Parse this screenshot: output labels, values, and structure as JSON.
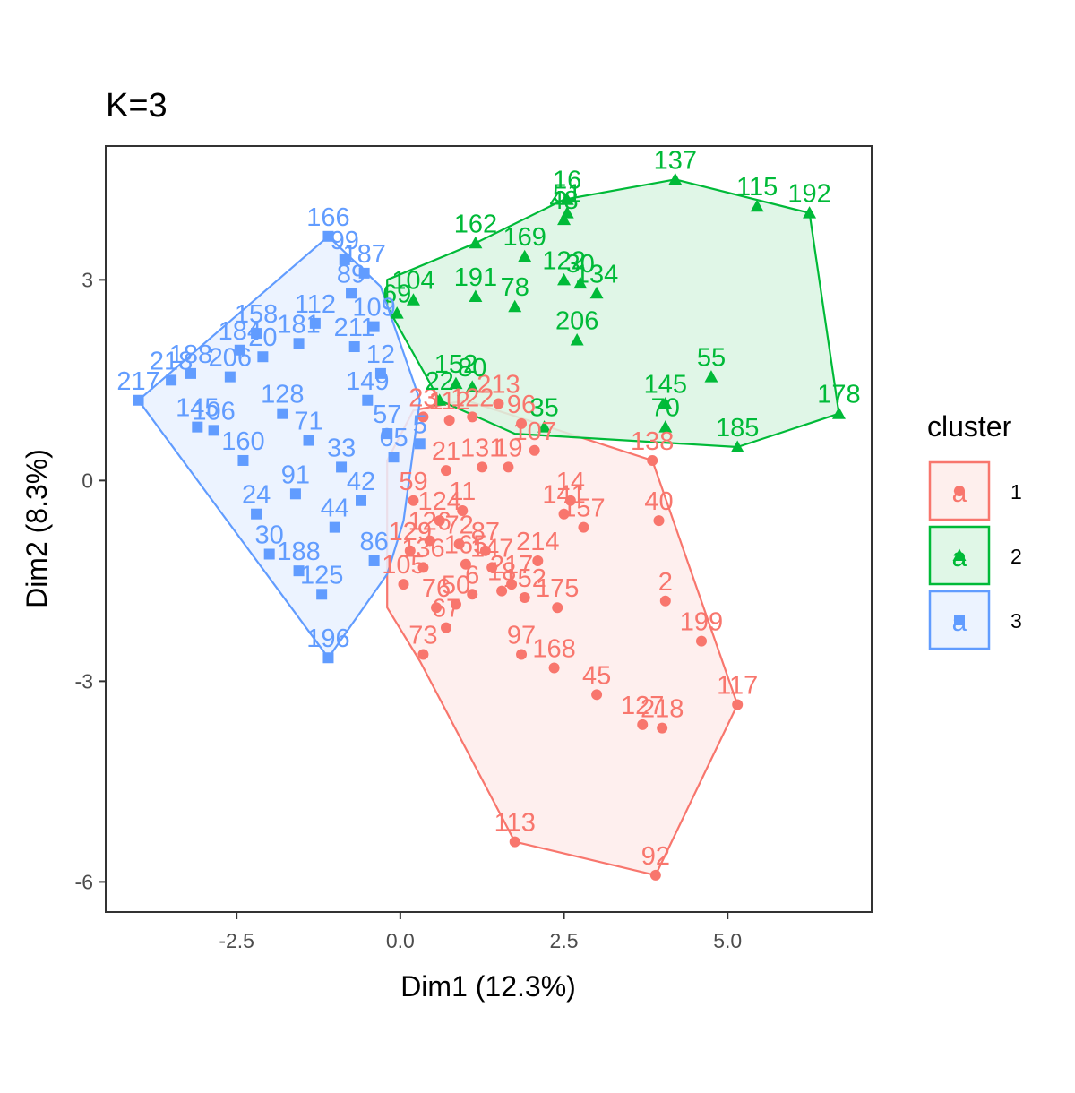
{
  "chart_data": {
    "type": "scatter",
    "title": "K=3",
    "xlabel": "Dim1 (12.3%)",
    "ylabel": "Dim2 (8.3%)",
    "xlim": [
      -4.5,
      7.2
    ],
    "ylim": [
      -6.45,
      5.0
    ],
    "x_ticks": [
      -2.5,
      0.0,
      2.5,
      5.0
    ],
    "x_tick_labels": [
      "-2.5",
      "0.0",
      "2.5",
      "5.0"
    ],
    "y_ticks": [
      -6,
      -3,
      0,
      3
    ],
    "y_tick_labels": [
      "-6",
      "-3",
      "0",
      "3"
    ],
    "grid": false,
    "legend": {
      "title": "cluster",
      "position": "right",
      "key_glyph": "a",
      "items": [
        "1",
        "2",
        "3"
      ]
    },
    "series": [
      {
        "name": "1",
        "color": "#F8766D",
        "marker": "circle",
        "hull": [
          [
            1.75,
            -5.4
          ],
          [
            3.9,
            -5.9
          ],
          [
            5.15,
            -3.35
          ],
          [
            3.85,
            0.3
          ],
          [
            1.0,
            1.2
          ],
          [
            0.2,
            1.05
          ],
          [
            -0.2,
            0.3
          ],
          [
            -0.2,
            -0.9
          ],
          [
            -0.2,
            -1.9
          ],
          [
            0.3,
            -2.7
          ]
        ],
        "points": [
          {
            "x": 1.75,
            "y": -5.4,
            "label": "113"
          },
          {
            "x": 3.9,
            "y": -5.9,
            "label": "92"
          },
          {
            "x": 5.15,
            "y": -3.35,
            "label": "117"
          },
          {
            "x": 3.7,
            "y": -3.65,
            "label": "127"
          },
          {
            "x": 4.0,
            "y": -3.7,
            "label": "218"
          },
          {
            "x": 3.0,
            "y": -3.2,
            "label": "45"
          },
          {
            "x": 2.35,
            "y": -2.8,
            "label": "168"
          },
          {
            "x": 1.85,
            "y": -2.6,
            "label": "97"
          },
          {
            "x": 4.6,
            "y": -2.4,
            "label": "199"
          },
          {
            "x": 4.05,
            "y": -1.8,
            "label": "2"
          },
          {
            "x": 2.4,
            "y": -1.9,
            "label": "175"
          },
          {
            "x": 3.95,
            "y": -0.6,
            "label": "40"
          },
          {
            "x": 2.8,
            "y": -0.7,
            "label": "157"
          },
          {
            "x": 2.5,
            "y": -0.5,
            "label": "141"
          },
          {
            "x": 2.6,
            "y": -0.3,
            "label": "14"
          },
          {
            "x": 2.1,
            "y": -1.2,
            "label": "214"
          },
          {
            "x": 1.7,
            "y": -1.55,
            "label": "217"
          },
          {
            "x": 1.9,
            "y": -1.75,
            "label": "152"
          },
          {
            "x": 1.55,
            "y": -1.65,
            "label": "18"
          },
          {
            "x": 1.4,
            "y": -1.3,
            "label": "147"
          },
          {
            "x": 1.0,
            "y": -1.25,
            "label": "165"
          },
          {
            "x": 1.1,
            "y": -1.7,
            "label": "6"
          },
          {
            "x": 0.85,
            "y": -1.85,
            "label": "50"
          },
          {
            "x": 0.7,
            "y": -2.2,
            "label": "67"
          },
          {
            "x": 0.35,
            "y": -2.6,
            "label": "73"
          },
          {
            "x": 0.05,
            "y": -1.55,
            "label": "105"
          },
          {
            "x": 0.35,
            "y": -1.3,
            "label": "136"
          },
          {
            "x": 0.45,
            "y": -0.9,
            "label": "126"
          },
          {
            "x": 0.6,
            "y": -0.6,
            "label": "124"
          },
          {
            "x": 0.95,
            "y": -0.45,
            "label": "11"
          },
          {
            "x": 1.25,
            "y": 0.2,
            "label": "131"
          },
          {
            "x": 1.65,
            "y": 0.2,
            "label": "19"
          },
          {
            "x": 2.05,
            "y": 0.45,
            "label": "107"
          },
          {
            "x": 1.85,
            "y": 0.85,
            "label": "96"
          },
          {
            "x": 1.5,
            "y": 1.15,
            "label": "213"
          },
          {
            "x": 0.35,
            "y": 0.95,
            "label": "23"
          },
          {
            "x": 0.75,
            "y": 0.9,
            "label": "112"
          },
          {
            "x": 1.1,
            "y": 0.95,
            "label": "122"
          },
          {
            "x": 0.7,
            "y": 0.15,
            "label": "21"
          },
          {
            "x": 0.2,
            "y": -0.3,
            "label": "59"
          },
          {
            "x": 3.85,
            "y": 0.3,
            "label": "138"
          },
          {
            "x": 0.55,
            "y": -1.9,
            "label": "76"
          },
          {
            "x": 0.9,
            "y": -0.95,
            "label": "72"
          },
          {
            "x": 1.3,
            "y": -1.05,
            "label": "87"
          },
          {
            "x": 0.15,
            "y": -1.05,
            "label": "129"
          }
        ]
      },
      {
        "name": "2",
        "color": "#00BA38",
        "marker": "triangle",
        "hull": [
          [
            -0.2,
            3.0
          ],
          [
            1.15,
            3.55
          ],
          [
            2.5,
            4.2
          ],
          [
            4.2,
            4.5
          ],
          [
            6.25,
            4.0
          ],
          [
            6.7,
            1.0
          ],
          [
            5.15,
            0.5
          ],
          [
            1.75,
            0.7
          ],
          [
            0.6,
            1.2
          ],
          [
            -0.2,
            2.6
          ]
        ],
        "points": [
          {
            "x": 4.2,
            "y": 4.5,
            "label": "137"
          },
          {
            "x": 5.45,
            "y": 4.1,
            "label": "115"
          },
          {
            "x": 6.25,
            "y": 4.0,
            "label": "192"
          },
          {
            "x": 2.55,
            "y": 4.2,
            "label": "16"
          },
          {
            "x": 2.5,
            "y": 3.9,
            "label": "48"
          },
          {
            "x": 2.55,
            "y": 4.0,
            "label": "51"
          },
          {
            "x": 1.15,
            "y": 3.55,
            "label": "162"
          },
          {
            "x": 1.9,
            "y": 3.35,
            "label": "169"
          },
          {
            "x": 2.5,
            "y": 3.0,
            "label": "122"
          },
          {
            "x": 2.75,
            "y": 2.95,
            "label": "30"
          },
          {
            "x": 3.0,
            "y": 2.8,
            "label": "134"
          },
          {
            "x": 2.7,
            "y": 2.1,
            "label": "206"
          },
          {
            "x": 1.15,
            "y": 2.75,
            "label": "191"
          },
          {
            "x": 1.75,
            "y": 2.6,
            "label": "78"
          },
          {
            "x": 0.2,
            "y": 2.7,
            "label": "104"
          },
          {
            "x": -0.05,
            "y": 2.5,
            "label": "69"
          },
          {
            "x": 0.85,
            "y": 1.45,
            "label": "152"
          },
          {
            "x": 1.1,
            "y": 1.4,
            "label": "80"
          },
          {
            "x": 0.6,
            "y": 1.2,
            "label": "22"
          },
          {
            "x": 4.75,
            "y": 1.55,
            "label": "55"
          },
          {
            "x": 4.05,
            "y": 1.15,
            "label": "145"
          },
          {
            "x": 4.05,
            "y": 0.8,
            "label": "70"
          },
          {
            "x": 6.7,
            "y": 1.0,
            "label": "178"
          },
          {
            "x": 5.15,
            "y": 0.5,
            "label": "185"
          },
          {
            "x": 2.2,
            "y": 0.8,
            "label": "35"
          }
        ]
      },
      {
        "name": "3",
        "color": "#619CFF",
        "marker": "square",
        "hull": [
          [
            -4.0,
            1.2
          ],
          [
            -1.1,
            3.65
          ],
          [
            -0.3,
            2.9
          ],
          [
            0.3,
            1.2
          ],
          [
            0.05,
            -0.6
          ],
          [
            -0.2,
            -1.4
          ],
          [
            -1.1,
            -2.65
          ]
        ],
        "points": [
          {
            "x": -4.0,
            "y": 1.2,
            "label": "217"
          },
          {
            "x": -1.1,
            "y": 3.65,
            "label": "166"
          },
          {
            "x": -0.85,
            "y": 3.3,
            "label": "99"
          },
          {
            "x": -0.55,
            "y": 3.1,
            "label": "187"
          },
          {
            "x": -0.75,
            "y": 2.8,
            "label": "89"
          },
          {
            "x": -2.2,
            "y": 2.2,
            "label": "158"
          },
          {
            "x": -2.45,
            "y": 1.95,
            "label": "184"
          },
          {
            "x": -1.3,
            "y": 2.35,
            "label": "112"
          },
          {
            "x": -1.55,
            "y": 2.05,
            "label": "181"
          },
          {
            "x": -2.1,
            "y": 1.85,
            "label": "20"
          },
          {
            "x": -3.2,
            "y": 1.6,
            "label": "188"
          },
          {
            "x": -3.5,
            "y": 1.5,
            "label": "218"
          },
          {
            "x": -2.6,
            "y": 1.55,
            "label": "206"
          },
          {
            "x": -0.7,
            "y": 2.0,
            "label": "211"
          },
          {
            "x": -0.4,
            "y": 2.3,
            "label": "109"
          },
          {
            "x": -3.1,
            "y": 0.8,
            "label": "145"
          },
          {
            "x": -2.85,
            "y": 0.75,
            "label": "106"
          },
          {
            "x": -2.2,
            "y": -0.5,
            "label": "24"
          },
          {
            "x": -2.0,
            "y": -1.1,
            "label": "30"
          },
          {
            "x": -1.55,
            "y": -1.35,
            "label": "188"
          },
          {
            "x": -1.2,
            "y": -1.7,
            "label": "125"
          },
          {
            "x": -1.1,
            "y": -2.65,
            "label": "196"
          },
          {
            "x": -0.5,
            "y": 1.2,
            "label": "149"
          },
          {
            "x": -0.2,
            "y": 0.7,
            "label": "57"
          },
          {
            "x": -0.6,
            "y": -0.3,
            "label": "42"
          },
          {
            "x": -0.4,
            "y": -1.2,
            "label": "86"
          },
          {
            "x": -0.1,
            "y": 0.35,
            "label": "65"
          },
          {
            "x": 0.3,
            "y": 0.55,
            "label": "5"
          },
          {
            "x": -1.8,
            "y": 1.0,
            "label": "128"
          },
          {
            "x": -1.4,
            "y": 0.6,
            "label": "71"
          },
          {
            "x": -0.9,
            "y": 0.2,
            "label": "33"
          },
          {
            "x": -1.6,
            "y": -0.2,
            "label": "91"
          },
          {
            "x": -2.4,
            "y": 0.3,
            "label": "160"
          },
          {
            "x": -1.0,
            "y": -0.7,
            "label": "44"
          },
          {
            "x": -0.3,
            "y": 1.6,
            "label": "12"
          }
        ]
      }
    ]
  }
}
